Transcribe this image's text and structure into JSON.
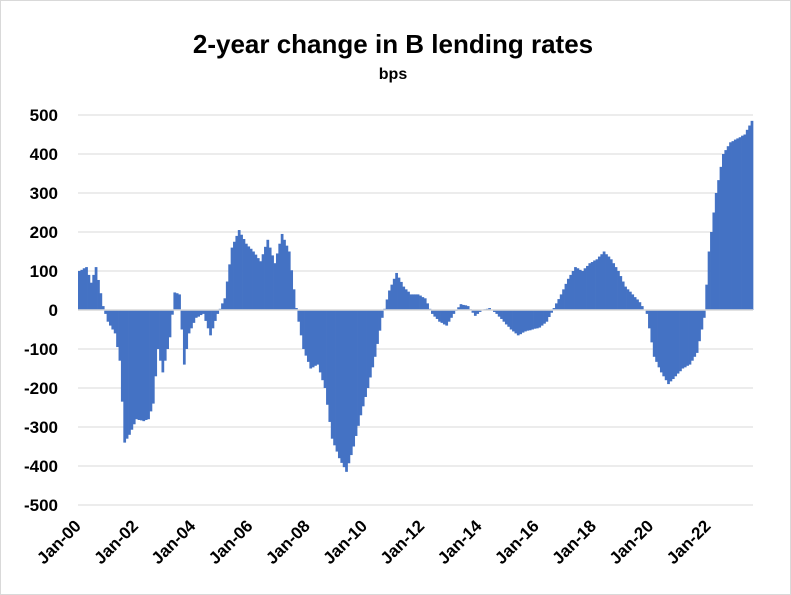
{
  "chart_data": {
    "type": "bar",
    "title": "2-year change in B lending rates",
    "subtitle": "bps",
    "xlabel": "",
    "ylabel": "",
    "ylim": [
      -500,
      500
    ],
    "yticks": [
      "500",
      "400",
      "300",
      "200",
      "100",
      "0",
      "-100",
      "-200",
      "-300",
      "-400",
      "-500"
    ],
    "x_tick_labels": [
      "Jan-00",
      "Jan-02",
      "Jan-04",
      "Jan-06",
      "Jan-08",
      "Jan-10",
      "Jan-12",
      "Jan-14",
      "Jan-16",
      "Jan-18",
      "Jan-20",
      "Jan-22"
    ],
    "bar_color": "#4472C4",
    "grid": true,
    "legend": "none",
    "series": [
      {
        "start": "2000-01",
        "frequency": "monthly",
        "keypoints": [
          [
            "2000-01",
            100
          ],
          [
            "2000-04",
            110
          ],
          [
            "2000-06",
            70
          ],
          [
            "2000-08",
            110
          ],
          [
            "2000-11",
            10
          ],
          [
            "2001-01",
            -30
          ],
          [
            "2001-04",
            -60
          ],
          [
            "2001-06",
            -130
          ],
          [
            "2001-08",
            -340
          ],
          [
            "2001-10",
            -320
          ],
          [
            "2002-01",
            -280
          ],
          [
            "2002-04",
            -285
          ],
          [
            "2002-06",
            -280
          ],
          [
            "2002-08",
            -240
          ],
          [
            "2002-10",
            -100
          ],
          [
            "2002-12",
            -160
          ],
          [
            "2003-03",
            -70
          ],
          [
            "2003-05",
            45
          ],
          [
            "2003-07",
            40
          ],
          [
            "2003-09",
            -140
          ],
          [
            "2003-11",
            -60
          ],
          [
            "2004-02",
            -20
          ],
          [
            "2004-05",
            -10
          ],
          [
            "2004-08",
            -65
          ],
          [
            "2004-11",
            -10
          ],
          [
            "2005-02",
            30
          ],
          [
            "2005-05",
            160
          ],
          [
            "2005-08",
            205
          ],
          [
            "2005-11",
            170
          ],
          [
            "2006-02",
            150
          ],
          [
            "2006-05",
            125
          ],
          [
            "2006-08",
            180
          ],
          [
            "2006-11",
            120
          ],
          [
            "2007-02",
            195
          ],
          [
            "2007-05",
            150
          ],
          [
            "2007-08",
            5
          ],
          [
            "2007-11",
            -100
          ],
          [
            "2008-02",
            -150
          ],
          [
            "2008-05",
            -140
          ],
          [
            "2008-08",
            -200
          ],
          [
            "2008-11",
            -330
          ],
          [
            "2009-02",
            -380
          ],
          [
            "2009-05",
            -415
          ],
          [
            "2009-08",
            -350
          ],
          [
            "2009-11",
            -270
          ],
          [
            "2010-02",
            -200
          ],
          [
            "2010-05",
            -120
          ],
          [
            "2010-08",
            -20
          ],
          [
            "2010-11",
            50
          ],
          [
            "2011-02",
            95
          ],
          [
            "2011-05",
            60
          ],
          [
            "2011-08",
            40
          ],
          [
            "2011-11",
            40
          ],
          [
            "2012-02",
            30
          ],
          [
            "2012-05",
            -10
          ],
          [
            "2012-08",
            -30
          ],
          [
            "2012-11",
            -40
          ],
          [
            "2013-02",
            -10
          ],
          [
            "2013-05",
            15
          ],
          [
            "2013-08",
            10
          ],
          [
            "2013-11",
            -15
          ],
          [
            "2014-02",
            0
          ],
          [
            "2014-05",
            5
          ],
          [
            "2014-08",
            -10
          ],
          [
            "2014-11",
            -30
          ],
          [
            "2015-02",
            -50
          ],
          [
            "2015-05",
            -65
          ],
          [
            "2015-08",
            -55
          ],
          [
            "2015-11",
            -50
          ],
          [
            "2016-02",
            -45
          ],
          [
            "2016-05",
            -30
          ],
          [
            "2016-08",
            5
          ],
          [
            "2016-11",
            40
          ],
          [
            "2017-02",
            80
          ],
          [
            "2017-05",
            110
          ],
          [
            "2017-08",
            100
          ],
          [
            "2017-11",
            120
          ],
          [
            "2018-02",
            130
          ],
          [
            "2018-05",
            150
          ],
          [
            "2018-08",
            130
          ],
          [
            "2018-11",
            100
          ],
          [
            "2019-02",
            60
          ],
          [
            "2019-05",
            40
          ],
          [
            "2019-08",
            20
          ],
          [
            "2019-11",
            -10
          ],
          [
            "2020-02",
            -120
          ],
          [
            "2020-05",
            -160
          ],
          [
            "2020-08",
            -190
          ],
          [
            "2020-11",
            -170
          ],
          [
            "2021-02",
            -150
          ],
          [
            "2021-05",
            -140
          ],
          [
            "2021-08",
            -110
          ],
          [
            "2021-11",
            -20
          ],
          [
            "2022-01",
            150
          ],
          [
            "2022-04",
            300
          ],
          [
            "2022-07",
            400
          ],
          [
            "2022-10",
            430
          ],
          [
            "2023-01",
            440
          ],
          [
            "2023-04",
            450
          ],
          [
            "2023-07",
            485
          ]
        ]
      }
    ]
  }
}
